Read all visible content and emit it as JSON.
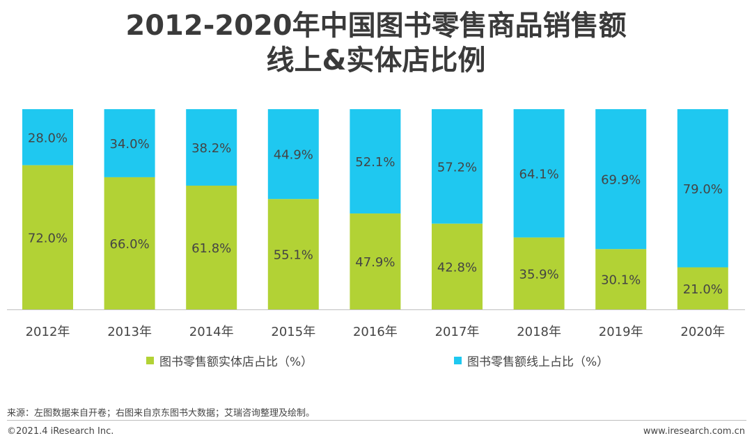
{
  "title_line1": "2012-2020年中国图书零售商品销售额",
  "title_line2": "线上&实体店比例",
  "colors": {
    "offline": "#b2d235",
    "online": "#1fc8f0"
  },
  "chart_data": {
    "type": "bar",
    "stacked": true,
    "title": "2012-2020年中国图书零售商品销售额线上&实体店比例",
    "categories": [
      "2012年",
      "2013年",
      "2014年",
      "2015年",
      "2016年",
      "2017年",
      "2018年",
      "2019年",
      "2020年"
    ],
    "series": [
      {
        "name": "图书零售额实体店占比（%）",
        "values": [
          72.0,
          66.0,
          61.8,
          55.1,
          47.9,
          42.8,
          35.9,
          30.1,
          21.0
        ]
      },
      {
        "name": "图书零售额线上占比（%）",
        "values": [
          28.0,
          34.0,
          38.2,
          44.9,
          52.1,
          57.2,
          64.1,
          69.9,
          79.0
        ]
      }
    ],
    "ylim": [
      0,
      100
    ],
    "value_format": "0.0%",
    "legend_position": "bottom"
  },
  "legend": {
    "offline_label": "图书零售额实体店占比（%）",
    "online_label": "图书零售额线上占比（%）"
  },
  "footer": {
    "source": "来源：左图数据来自开卷；右图来自京东图书大数据；艾瑞咨询整理及绘制。",
    "copyright": "©2021.4 iResearch Inc.",
    "website": "www.iresearch.com.cn"
  }
}
